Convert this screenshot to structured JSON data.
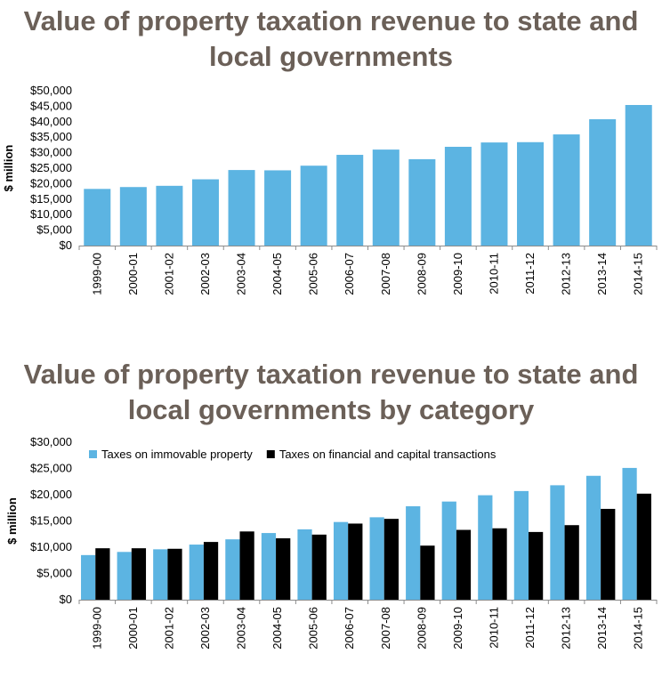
{
  "chart_data": [
    {
      "type": "bar",
      "title": "Value of property taxation revenue to state and local governments",
      "ylabel": "$ million",
      "xlabel": "",
      "ylim": [
        0,
        50000
      ],
      "yticks": [
        "$0",
        "$5,000",
        "$10,000",
        "$15,000",
        "$20,000",
        "$25,000",
        "$30,000",
        "$35,000",
        "$40,000",
        "$45,000",
        "$50,000"
      ],
      "categories": [
        "1999-00",
        "2000-01",
        "2001-02",
        "2002-03",
        "2003-04",
        "2004-05",
        "2005-06",
        "2006-07",
        "2007-08",
        "2008-09",
        "2009-10",
        "2010-11",
        "2011-12",
        "2012-13",
        "2013-14",
        "2014-15"
      ],
      "values": [
        18300,
        18900,
        19300,
        21400,
        24400,
        24300,
        25800,
        29300,
        31000,
        27900,
        31900,
        33300,
        33400,
        35900,
        40800,
        45400
      ],
      "colors": [
        "#5cb4e2"
      ],
      "grid": false,
      "legend": "none"
    },
    {
      "type": "bar",
      "title": "Value of property taxation revenue to state and local governments by category",
      "ylabel": "$ million",
      "xlabel": "",
      "ylim": [
        0,
        30000
      ],
      "yticks": [
        "$0",
        "$5,000",
        "$10,000",
        "$15,000",
        "$20,000",
        "$25,000",
        "$30,000"
      ],
      "categories": [
        "1999-00",
        "2000-01",
        "2001-02",
        "2002-03",
        "2003-04",
        "2004-05",
        "2005-06",
        "2006-07",
        "2007-08",
        "2008-09",
        "2009-10",
        "2010-11",
        "2011-12",
        "2012-13",
        "2013-14",
        "2014-15"
      ],
      "series": [
        {
          "name": "Taxes on immovable property",
          "color": "#5cb4e2",
          "values": [
            8500,
            9100,
            9600,
            10500,
            11500,
            12700,
            13400,
            14800,
            15700,
            17800,
            18700,
            19900,
            20700,
            21800,
            23600,
            25100
          ]
        },
        {
          "name": "Taxes on financial and capital transactions",
          "color": "#000000",
          "values": [
            9800,
            9800,
            9700,
            11000,
            13000,
            11700,
            12400,
            14500,
            15400,
            10300,
            13300,
            13600,
            12900,
            14200,
            17300,
            20200
          ]
        }
      ],
      "grid": false,
      "legend": "top-left"
    }
  ]
}
